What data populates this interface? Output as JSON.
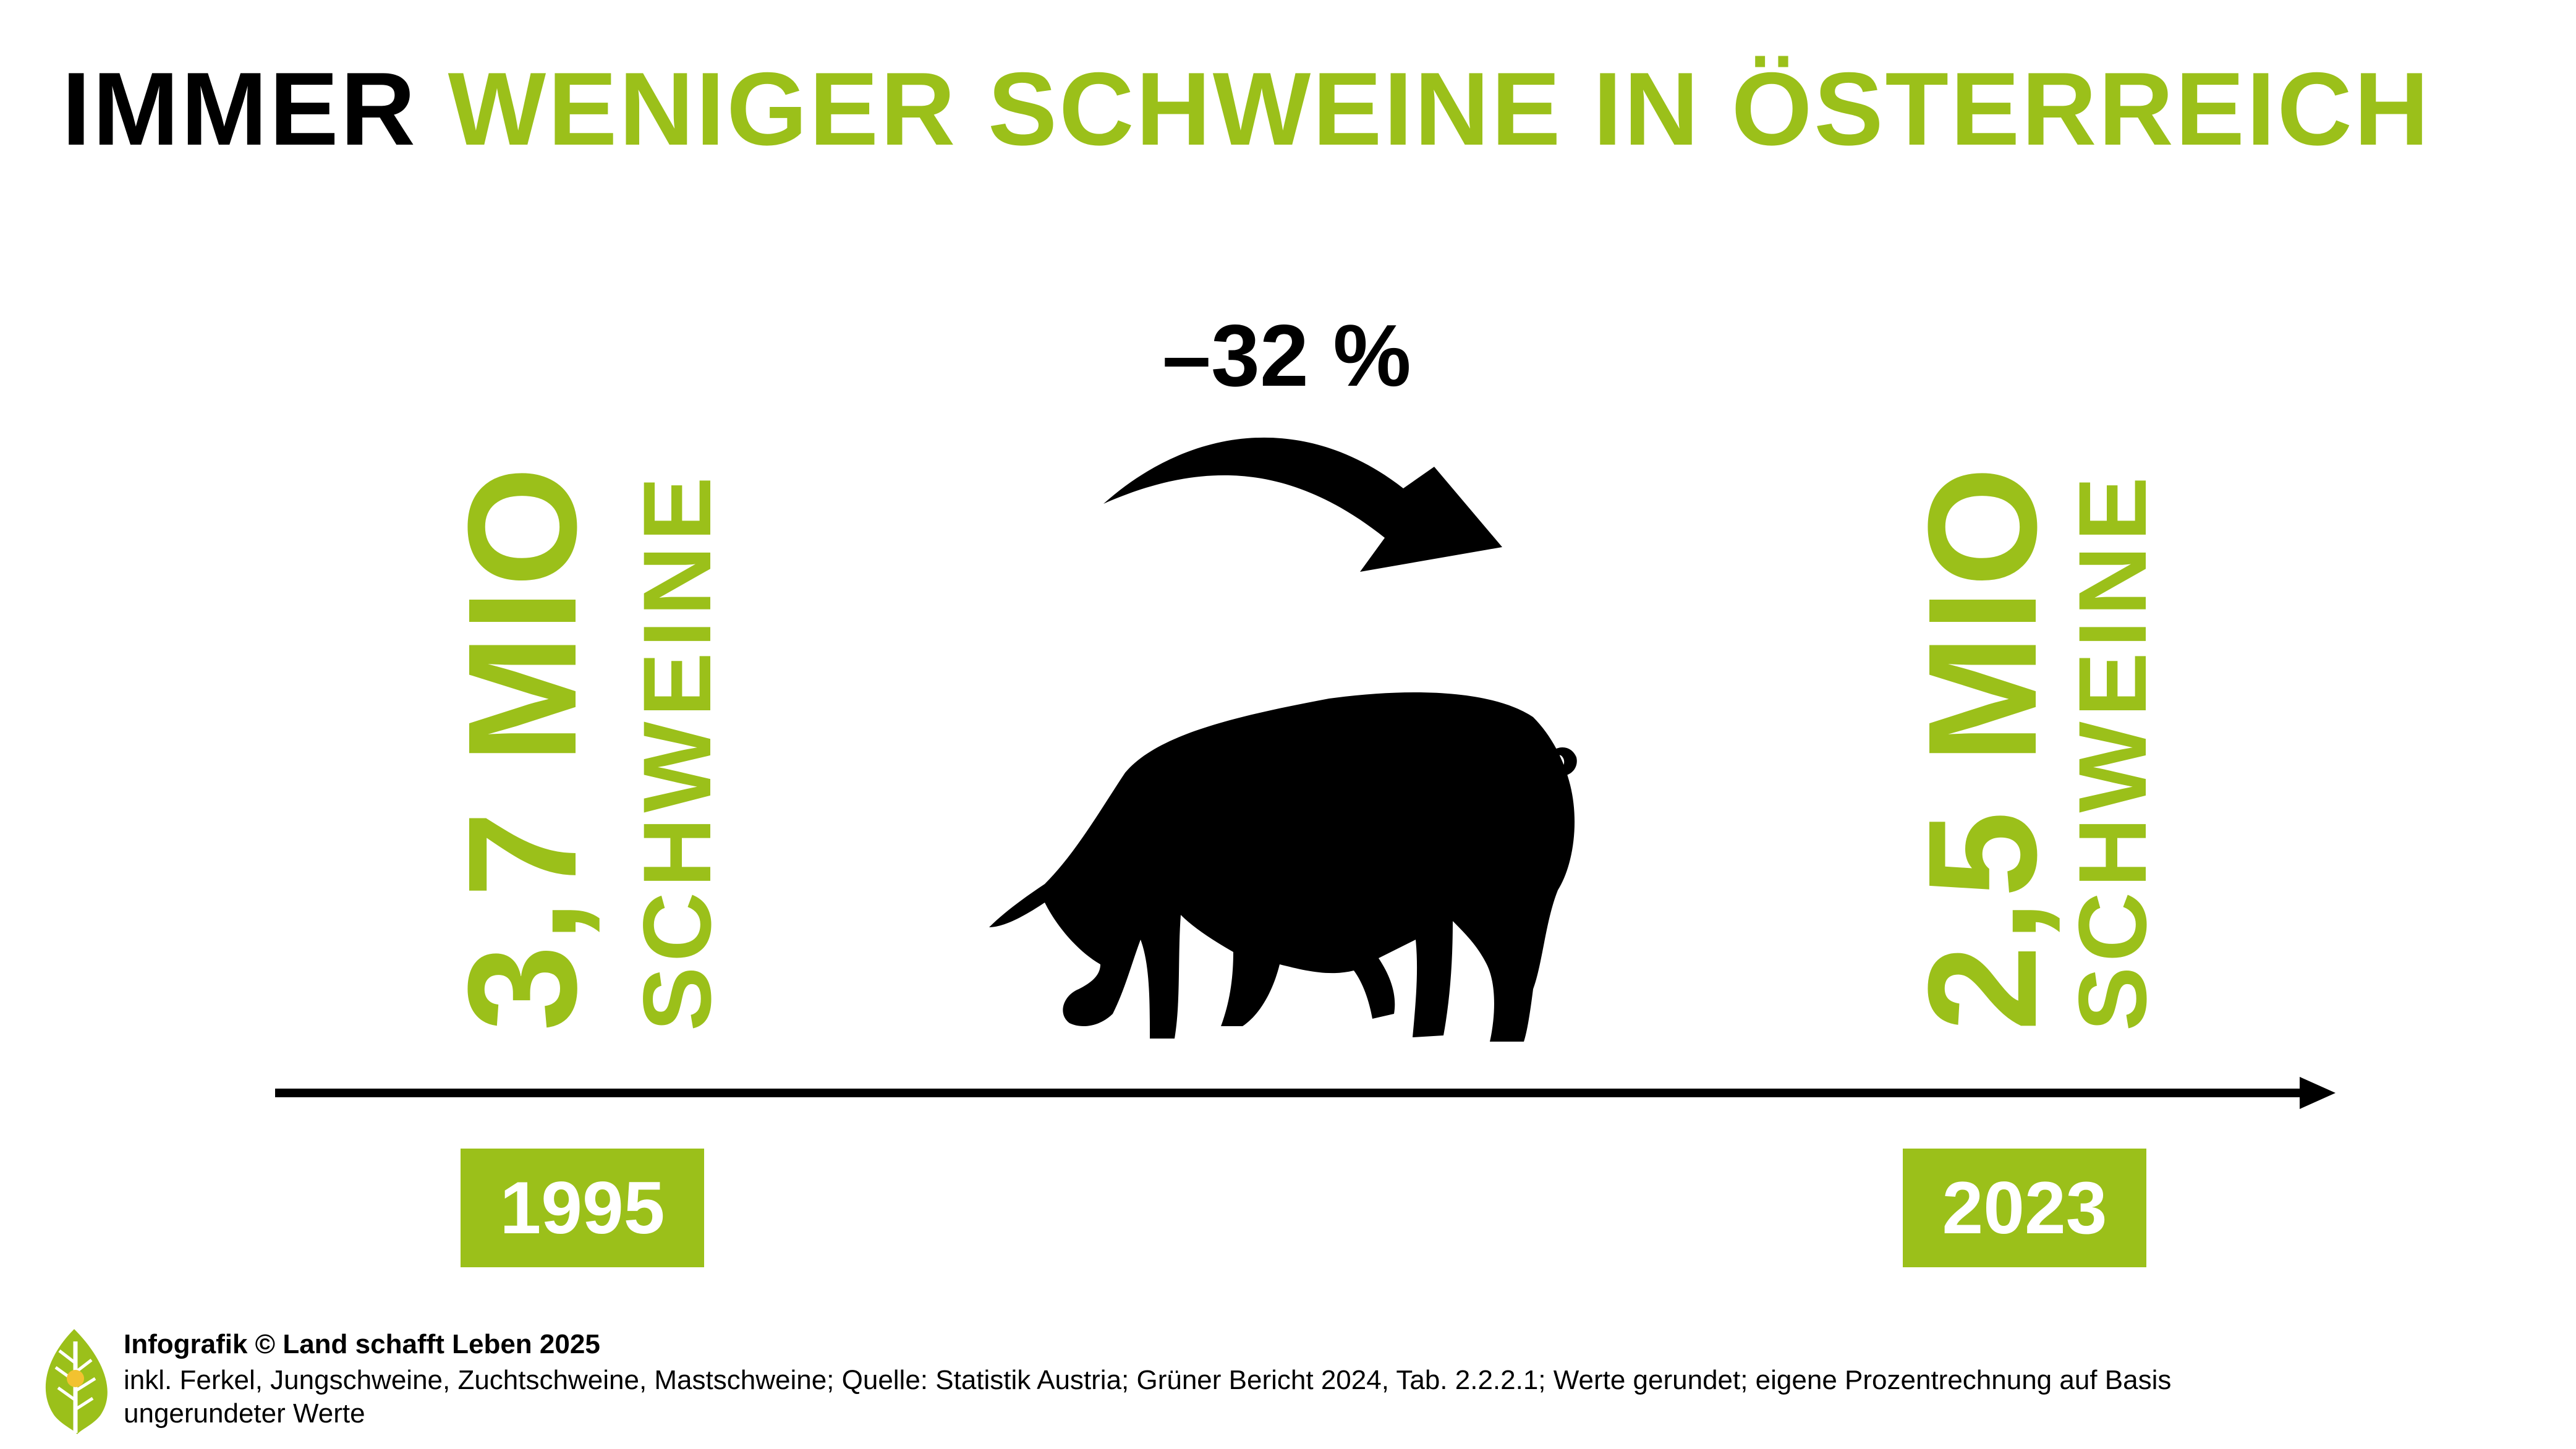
{
  "title": {
    "part1": "IMMER",
    "part2": "WENIGER SCHWEINE IN ÖSTERREICH"
  },
  "colors": {
    "accent": "#9bc01a",
    "text": "#000000",
    "box_text": "#ffffff"
  },
  "chart_data": {
    "type": "bar",
    "categories": [
      "1995",
      "2023"
    ],
    "values": [
      3.7,
      2.5
    ],
    "value_labels": [
      "3,7 MIO",
      "2,5 MIO"
    ],
    "unit_label": "SCHWEINE",
    "change_label": "–32 %",
    "title": "IMMER WENIGER SCHWEINE IN ÖSTERREICH"
  },
  "icons": {
    "pig": "pig-silhouette-icon",
    "arrow": "curved-arrow-icon",
    "logo": "leaf-logo-icon"
  },
  "footer": {
    "credit": "Infografik © Land schafft Leben 2025",
    "note_line1": "inkl. Ferkel, Jungschweine, Zuchtschweine, Mastschweine; Quelle: Statistik Austria; Grüner Bericht 2024, Tab. 2.2.2.1; Werte gerundet; eigene Prozentrechnung auf Basis",
    "note_line2": "ungerundeter Werte"
  }
}
